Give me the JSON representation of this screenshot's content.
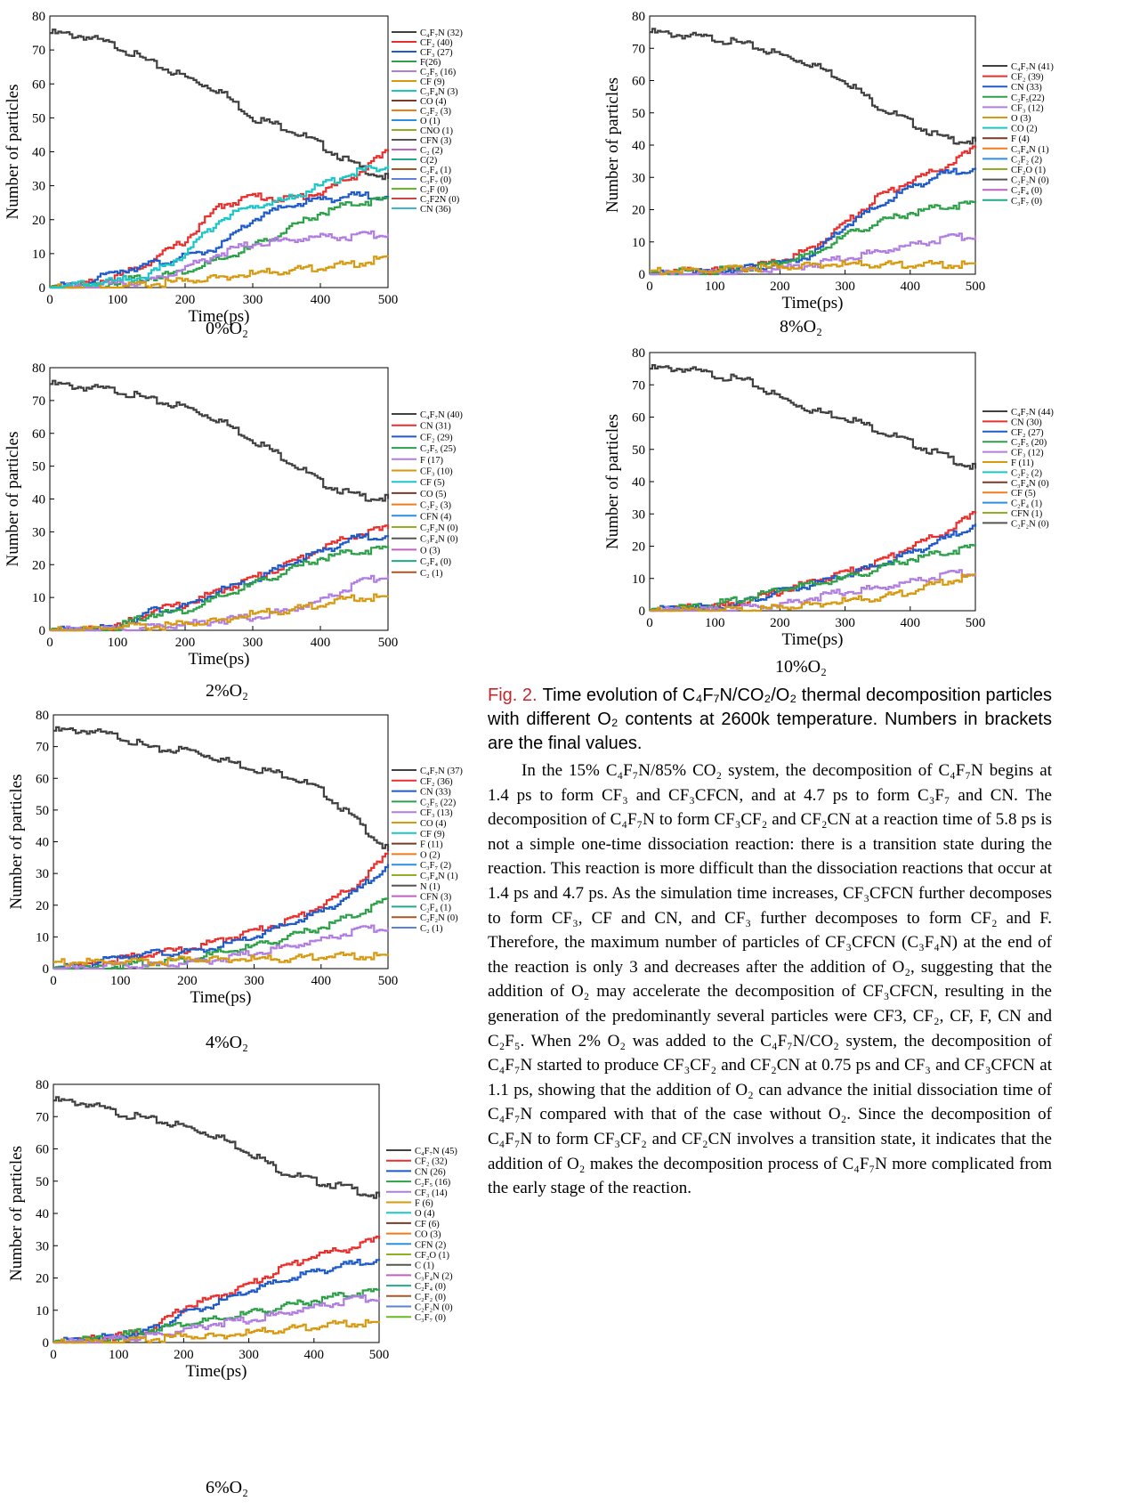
{
  "figure": {
    "axis_x_label": "Time(ps)",
    "axis_y_label": "Number of particles",
    "x_ticks": [
      "0",
      "100",
      "200",
      "300",
      "400",
      "500"
    ],
    "y_ticks": [
      "0",
      "10",
      "20",
      "30",
      "40",
      "50",
      "60",
      "70",
      "80"
    ],
    "panels": [
      {
        "condition": "0%O₂",
        "legend": [
          "C₄F₇N (32)",
          "CF₂ (40)",
          "CF₃ (27)",
          "F(26)",
          "C₂F₅ (16)",
          "CF (9)",
          "C₃F₄N (3)",
          "CO (4)",
          "C₂F₂ (3)",
          "O (1)",
          "CNO (1)",
          "CFN (3)",
          "C₂ (2)",
          "C(2)",
          "C₂F₄ (1)",
          "C₃F₇ (0)",
          "C₂F (0)",
          "C₂F2N (0)",
          "CN (36)"
        ]
      },
      {
        "condition": "2%O₂",
        "legend": [
          "C₄F₇N (40)",
          "CN (31)",
          "CF₂ (29)",
          "C₂F₅ (25)",
          "F (17)",
          "CF₃ (10)",
          "CF (5)",
          "CO (5)",
          "C₂F₂ (3)",
          "CFN (4)",
          "C₂F₂N (0)",
          "C₃F₄N (0)",
          "O (3)",
          "C₂F₄ (0)",
          "C₂ (1)"
        ]
      },
      {
        "condition": "4%O₂",
        "legend": [
          "C₄F₇N (37)",
          "CF₂ (36)",
          "CN (33)",
          "C₂F₅ (22)",
          "CF₃ (13)",
          "CO (4)",
          "CF (9)",
          "F (11)",
          "O (2)",
          "C₃F₇ (2)",
          "C₃F₄N (1)",
          "N (1)",
          "CFN (3)",
          "C₂F₄ (1)",
          "C₂F₂N (0)",
          "C₂ (1)"
        ]
      },
      {
        "condition": "6%O₂",
        "legend": [
          "C₄F₇N (45)",
          "CF₂ (32)",
          "CN (26)",
          "C₂F₅ (16)",
          "CF₃ (14)",
          "F (6)",
          "O (4)",
          "CF (6)",
          "CO (3)",
          "CFN (2)",
          "CF₂O (1)",
          "C (1)",
          "C₃F₄N (2)",
          "C₂F₄ (0)",
          "C₂F₂ (0)",
          "C₂F₂N (0)",
          "C₃F₇ (0)"
        ]
      },
      {
        "condition": "8%O₂",
        "legend": [
          "C₄F₇N (41)",
          "CF₂ (39)",
          "CN (33)",
          "C₂F₅(22)",
          "CF₃ (12)",
          "O (3)",
          "CO (2)",
          "F (4)",
          "C₃F₄N (1)",
          "C₂F₂ (2)",
          "CF₂O (1)",
          "C₂F₂N (0)",
          "C₂F₄ (0)",
          "C₃F₇ (0)"
        ]
      },
      {
        "condition": "10%O₂",
        "legend": [
          "C₄F₇N (44)",
          "CN (30)",
          "CF₂ (27)",
          "C₂F₅ (20)",
          "CF₃ (12)",
          "F (11)",
          "C₂F₂ (2)",
          "C₃F₄N (0)",
          "CF (5)",
          "C₂F₄ (1)",
          "CFN (1)",
          "C₂F₂N (0)"
        ]
      }
    ]
  },
  "chart_data": [
    {
      "type": "line",
      "title": "0%O₂",
      "xlabel": "Time(ps)",
      "ylabel": "Number of particles",
      "xlim": [
        0,
        500
      ],
      "ylim": [
        0,
        80
      ],
      "x": [
        0,
        50,
        100,
        150,
        200,
        250,
        300,
        350,
        400,
        450,
        500
      ],
      "series": [
        {
          "name": "C₄F₇N (32)",
          "color": "#404040",
          "values": [
            75,
            74,
            71,
            66,
            62,
            58,
            50,
            47,
            42,
            36,
            32
          ]
        },
        {
          "name": "CF₂ (40)",
          "color": "#e8312f",
          "values": [
            0,
            1,
            3,
            8,
            14,
            24,
            27,
            26,
            28,
            33,
            40
          ]
        },
        {
          "name": "CF₃ (27)",
          "color": "#1f5bc8",
          "values": [
            0,
            1,
            5,
            7,
            9,
            12,
            20,
            24,
            26,
            27,
            27
          ]
        },
        {
          "name": "F(26)",
          "color": "#2ea04a",
          "values": [
            0,
            0,
            2,
            3,
            5,
            8,
            12,
            17,
            22,
            25,
            26
          ]
        },
        {
          "name": "C₂F₅ (16)",
          "color": "#b07de0",
          "values": [
            0,
            0,
            1,
            2,
            6,
            10,
            13,
            14,
            15,
            15,
            16
          ]
        },
        {
          "name": "CF (9)",
          "color": "#d69a10",
          "values": [
            0,
            0,
            0,
            1,
            2,
            3,
            4,
            5,
            6,
            7,
            9
          ]
        },
        {
          "name": "CN (36)",
          "color": "#1bc6c6",
          "values": [
            0,
            1,
            2,
            4,
            10,
            20,
            24,
            26,
            30,
            34,
            36
          ]
        }
      ]
    },
    {
      "type": "line",
      "title": "2%O₂",
      "xlabel": "Time(ps)",
      "ylabel": "Number of particles",
      "xlim": [
        0,
        500
      ],
      "ylim": [
        0,
        80
      ],
      "x": [
        0,
        50,
        100,
        150,
        200,
        250,
        300,
        350,
        400,
        450,
        500
      ],
      "series": [
        {
          "name": "C₄F₇N (40)",
          "color": "#404040",
          "values": [
            75,
            74,
            73,
            70,
            68,
            64,
            58,
            52,
            45,
            41,
            40
          ]
        },
        {
          "name": "CN (31)",
          "color": "#e8312f",
          "values": [
            0,
            0,
            1,
            6,
            8,
            12,
            16,
            20,
            25,
            29,
            31
          ]
        },
        {
          "name": "CF₂ (29)",
          "color": "#1f5bc8",
          "values": [
            0,
            0,
            1,
            6,
            7,
            12,
            15,
            20,
            24,
            28,
            29
          ]
        },
        {
          "name": "C₂F₅ (25)",
          "color": "#2ea04a",
          "values": [
            0,
            0,
            1,
            5,
            6,
            10,
            14,
            18,
            22,
            24,
            25
          ]
        },
        {
          "name": "F (17)",
          "color": "#b07de0",
          "values": [
            0,
            0,
            0,
            1,
            2,
            3,
            4,
            6,
            9,
            14,
            17
          ]
        },
        {
          "name": "CF₃ (10)",
          "color": "#d69a10",
          "values": [
            0,
            0,
            1,
            1,
            2,
            3,
            5,
            6,
            8,
            10,
            10
          ]
        }
      ]
    },
    {
      "type": "line",
      "title": "4%O₂",
      "xlabel": "Time(ps)",
      "ylabel": "Number of particles",
      "xlim": [
        0,
        500
      ],
      "ylim": [
        0,
        80
      ],
      "x": [
        0,
        50,
        100,
        150,
        200,
        250,
        300,
        350,
        400,
        450,
        500
      ],
      "series": [
        {
          "name": "C₄F₇N (37)",
          "color": "#404040",
          "values": [
            75,
            75,
            73,
            69,
            69,
            66,
            63,
            61,
            56,
            47,
            37
          ]
        },
        {
          "name": "CF₂ (36)",
          "color": "#e8312f",
          "values": [
            0,
            1,
            3,
            5,
            6,
            9,
            12,
            15,
            20,
            26,
            36
          ]
        },
        {
          "name": "CN (33)",
          "color": "#1f5bc8",
          "values": [
            0,
            1,
            4,
            5,
            5,
            7,
            10,
            14,
            18,
            24,
            33
          ]
        },
        {
          "name": "C₂F₅ (22)",
          "color": "#2ea04a",
          "values": [
            0,
            0,
            1,
            2,
            3,
            5,
            7,
            10,
            13,
            17,
            22
          ]
        },
        {
          "name": "CF₃ (13)",
          "color": "#b07de0",
          "values": [
            0,
            0,
            1,
            1,
            2,
            3,
            5,
            7,
            9,
            12,
            13
          ]
        },
        {
          "name": "CO (4)",
          "color": "#d69a10",
          "values": [
            2,
            2,
            2,
            2,
            3,
            3,
            3,
            3,
            4,
            4,
            4
          ]
        }
      ]
    },
    {
      "type": "line",
      "title": "6%O₂",
      "xlabel": "Time(ps)",
      "ylabel": "Number of particles",
      "xlim": [
        0,
        500
      ],
      "ylim": [
        0,
        80
      ],
      "x": [
        0,
        50,
        100,
        150,
        200,
        250,
        300,
        350,
        400,
        450,
        500
      ],
      "series": [
        {
          "name": "C₄F₇N (45)",
          "color": "#404040",
          "values": [
            75,
            74,
            71,
            69,
            67,
            64,
            59,
            53,
            50,
            48,
            45
          ]
        },
        {
          "name": "CF₂ (32)",
          "color": "#e8312f",
          "values": [
            0,
            1,
            2,
            4,
            11,
            14,
            18,
            23,
            27,
            29,
            32
          ]
        },
        {
          "name": "CN (26)",
          "color": "#1f5bc8",
          "values": [
            0,
            1,
            2,
            4,
            9,
            12,
            16,
            19,
            22,
            24,
            26
          ]
        },
        {
          "name": "C₂F₅ (16)",
          "color": "#2ea04a",
          "values": [
            0,
            1,
            2,
            4,
            6,
            7,
            9,
            11,
            13,
            15,
            16
          ]
        },
        {
          "name": "CF₃ (14)",
          "color": "#b07de0",
          "values": [
            0,
            0,
            1,
            2,
            4,
            6,
            7,
            9,
            11,
            13,
            14
          ]
        },
        {
          "name": "F (6)",
          "color": "#d69a10",
          "values": [
            0,
            0,
            0,
            1,
            2,
            2,
            3,
            4,
            5,
            6,
            6
          ]
        }
      ]
    },
    {
      "type": "line",
      "title": "8%O₂",
      "xlabel": "Time(ps)",
      "ylabel": "Number of particles",
      "xlim": [
        0,
        500
      ],
      "ylim": [
        0,
        80
      ],
      "x": [
        0,
        50,
        100,
        150,
        200,
        250,
        300,
        350,
        400,
        450,
        500
      ],
      "series": [
        {
          "name": "C₄F₇N (41)",
          "color": "#404040",
          "values": [
            75,
            74,
            73,
            71,
            68,
            65,
            60,
            52,
            47,
            42,
            41
          ]
        },
        {
          "name": "CF₂ (39)",
          "color": "#e8312f",
          "values": [
            0,
            1,
            1,
            2,
            4,
            8,
            16,
            24,
            29,
            33,
            39
          ]
        },
        {
          "name": "CN (33)",
          "color": "#1f5bc8",
          "values": [
            0,
            0,
            1,
            2,
            3,
            6,
            15,
            21,
            27,
            31,
            33
          ]
        },
        {
          "name": "C₂F₅(22)",
          "color": "#2ea04a",
          "values": [
            0,
            1,
            1,
            2,
            4,
            6,
            12,
            16,
            19,
            21,
            22
          ]
        },
        {
          "name": "CF₃ (12)",
          "color": "#b07de0",
          "values": [
            0,
            0,
            0,
            1,
            2,
            3,
            5,
            7,
            9,
            11,
            12
          ]
        },
        {
          "name": "O (3)",
          "color": "#d69a10",
          "values": [
            1,
            1,
            1,
            2,
            2,
            3,
            3,
            3,
            3,
            3,
            3
          ]
        }
      ]
    },
    {
      "type": "line",
      "title": "10%O₂",
      "xlabel": "Time(ps)",
      "ylabel": "Number of particles",
      "xlim": [
        0,
        500
      ],
      "ylim": [
        0,
        80
      ],
      "x": [
        0,
        50,
        100,
        150,
        200,
        250,
        300,
        350,
        400,
        450,
        500
      ],
      "series": [
        {
          "name": "C₄F₇N (44)",
          "color": "#404040",
          "values": [
            75,
            75,
            73,
            71,
            66,
            62,
            60,
            56,
            52,
            48,
            44
          ]
        },
        {
          "name": "CN (30)",
          "color": "#e8312f",
          "values": [
            0,
            1,
            1,
            3,
            6,
            9,
            12,
            15,
            20,
            24,
            30
          ]
        },
        {
          "name": "CF₂ (27)",
          "color": "#1f5bc8",
          "values": [
            0,
            1,
            1,
            3,
            6,
            8,
            11,
            14,
            18,
            22,
            27
          ]
        },
        {
          "name": "C₂F₅ (20)",
          "color": "#2ea04a",
          "values": [
            0,
            1,
            2,
            4,
            7,
            8,
            10,
            13,
            16,
            18,
            20
          ]
        },
        {
          "name": "CF₃ (12)",
          "color": "#b07de0",
          "values": [
            0,
            0,
            0,
            1,
            2,
            4,
            6,
            7,
            9,
            11,
            12
          ]
        },
        {
          "name": "F (11)",
          "color": "#d69a10",
          "values": [
            0,
            0,
            0,
            0,
            1,
            2,
            3,
            4,
            6,
            9,
            11
          ]
        }
      ]
    }
  ],
  "caption": {
    "figure_number": "Fig. 2.",
    "text": "Time evolution of C₄F₇N/CO₂/O₂ thermal decomposition particles with different O₂ contents at 2600k temperature. Numbers in brackets are the final values."
  },
  "body_paragraph": "In the 15% C₄F₇N/85% CO₂ system, the decomposition of C₄F₇N begins at 1.4 ps to form CF₃ and CF₃CFCN, and at 4.7 ps to form C₃F₇ and CN. The decomposition of C₄F₇N to form CF₃CF₂ and CF₂CN at a reaction time of 5.8 ps is not a simple one-time dissociation reaction: there is a transition state during the reaction. This reaction is more difficult than the dissociation reactions that occur at 1.4 ps and 4.7 ps. As the simulation time increases, CF₃CFCN further decomposes to form CF₃, CF and CN, and CF₃ further decomposes to form CF₂ and F. Therefore, the maximum number of particles of CF₃CFCN (C₃F₄N) at the end of the reaction is only 3 and decreases after the addition of O₂, suggesting that the addition of O₂ may accelerate the decomposition of CF₃CFCN, resulting in the generation of the predominantly several particles were CF3, CF₂, CF, F, CN and C₂F₅. When 2% O₂ was added to the C₄F₇N/CO₂ system, the decomposition of C₄F₇N started to produce CF₃CF₂ and CF₂CN at 0.75 ps and CF₃ and CF₃CFCN at 1.1 ps, showing that the addition of O₂ can advance the initial dissociation time of C₄F₇N compared with that of the case without O₂. Since the decomposition of C₄F₇N to form CF₃CF₂ and CF₂CN involves a transition state, it indicates that the addition of O₂ makes the decomposition process of C₄F₇N more complicated from the early stage of the reaction."
}
